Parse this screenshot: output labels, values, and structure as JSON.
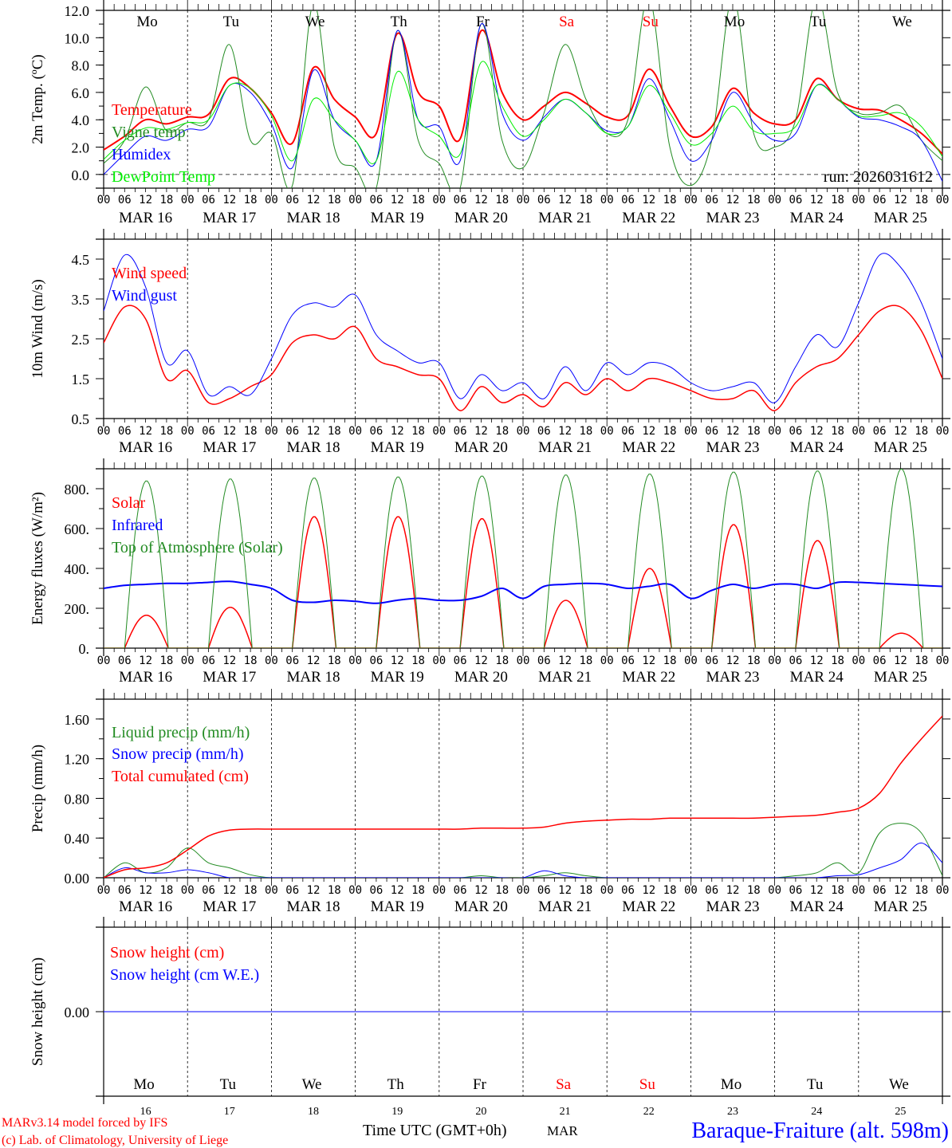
{
  "colors": {
    "red": "#ff0000",
    "green": "#228b22",
    "blue": "#0000ff",
    "lightgreen": "#00ee00",
    "black": "#000000"
  },
  "days": [
    "Mo",
    "Tu",
    "We",
    "Th",
    "Fr",
    "Sa",
    "Su",
    "Mo",
    "Tu",
    "We"
  ],
  "weekend_days": [
    5,
    6
  ],
  "dates": [
    "MAR  16",
    "MAR  17",
    "MAR  18",
    "MAR  19",
    "MAR  20",
    "MAR  21",
    "MAR  22",
    "MAR  23",
    "MAR  24",
    "MAR  25"
  ],
  "day_numbers": [
    "16",
    "17",
    "18",
    "19",
    "20",
    "21",
    "22",
    "23",
    "24",
    "25"
  ],
  "hour_ticks": [
    "00",
    "06",
    "12",
    "18"
  ],
  "final_tick": "00",
  "footer": {
    "model": "MARv3.14 model forced by IFS",
    "credit": "(c) Lab. of Climatology, University of Liege",
    "xlabel": "Time UTC (GMT+0h)",
    "month": "MAR",
    "station": "Baraque-Fraiture (alt. 598m)"
  },
  "chart_data": [
    {
      "type": "line",
      "ylabel": "2m Temp. (ºC)",
      "ylim": [
        -1,
        12
      ],
      "yticks": [
        "0.0",
        "2.0",
        "4.0",
        "6.0",
        "8.0",
        "10.0",
        "12.0"
      ],
      "ytick_values": [
        0,
        2,
        4,
        6,
        8,
        10,
        12
      ],
      "annotation": "run: 2026031612",
      "x_step_hours": 6,
      "series": [
        {
          "name": "Temperature",
          "color": "#ff0000",
          "width": 2,
          "values": [
            1.8,
            2.8,
            4.0,
            3.7,
            4.2,
            4.4,
            7.0,
            6.3,
            4.5,
            2.3,
            7.8,
            5.5,
            4.2,
            3.0,
            10.3,
            6.0,
            5.0,
            2.6,
            10.5,
            6.0,
            4.0,
            5.0,
            6.0,
            5.2,
            4.2,
            4.3,
            7.7,
            5.0,
            2.8,
            3.5,
            6.3,
            4.5,
            3.7,
            4.0,
            7.0,
            5.5,
            4.8,
            4.7,
            4.0,
            3.0,
            1.5
          ]
        },
        {
          "name": "Vigne temp",
          "color": "#228b22",
          "width": 1,
          "values": [
            0.8,
            2.5,
            6.4,
            3.2,
            3.8,
            4.0,
            9.5,
            2.5,
            3.0,
            -0.8,
            12.5,
            2.0,
            0.5,
            -1.0,
            10.5,
            2.5,
            0.8,
            -1.0,
            11.0,
            2.5,
            0.5,
            4.5,
            9.5,
            5.5,
            3.0,
            4.0,
            13.0,
            2.0,
            -0.8,
            2.5,
            13.0,
            3.0,
            2.0,
            4.0,
            13.0,
            6.0,
            4.5,
            4.5,
            5.0,
            2.5,
            1.0
          ]
        },
        {
          "name": "Humidex",
          "color": "#0000ff",
          "width": 1,
          "values": [
            0.0,
            1.5,
            2.8,
            2.5,
            3.3,
            3.5,
            6.5,
            6.0,
            3.7,
            0.5,
            7.6,
            4.0,
            2.5,
            1.0,
            10.5,
            4.0,
            3.5,
            1.0,
            11.0,
            4.5,
            2.5,
            4.2,
            5.5,
            4.5,
            3.2,
            3.5,
            7.0,
            4.0,
            1.0,
            2.5,
            6.0,
            3.8,
            2.5,
            3.0,
            6.5,
            5.5,
            4.2,
            4.0,
            3.5,
            2.5,
            -0.5
          ]
        },
        {
          "name": "DewPoint Temp",
          "color": "#00ee00",
          "width": 1,
          "values": [
            1.1,
            2.5,
            3.4,
            3.3,
            3.8,
            4.0,
            6.5,
            6.3,
            4.3,
            1.0,
            5.5,
            4.0,
            2.5,
            1.0,
            7.5,
            4.0,
            2.8,
            1.5,
            8.2,
            5.0,
            2.8,
            4.0,
            5.5,
            4.5,
            3.0,
            3.5,
            6.5,
            4.5,
            2.2,
            3.0,
            5.0,
            3.2,
            3.0,
            3.5,
            6.5,
            5.5,
            4.3,
            4.3,
            4.5,
            3.5,
            1.3
          ]
        }
      ]
    },
    {
      "type": "line",
      "ylabel": "10m Wind (m/s)",
      "ylim": [
        0.5,
        5.0
      ],
      "yticks": [
        "0.5",
        "1.5",
        "2.5",
        "3.5",
        "4.5"
      ],
      "ytick_values": [
        0.5,
        1.5,
        2.5,
        3.5,
        4.5
      ],
      "x_step_hours": 6,
      "series": [
        {
          "name": "Wind speed",
          "color": "#ff0000",
          "width": 1.5,
          "values": [
            2.4,
            3.3,
            3.0,
            1.5,
            1.7,
            0.9,
            1.0,
            1.3,
            1.6,
            2.4,
            2.6,
            2.5,
            2.8,
            2.0,
            1.8,
            1.6,
            1.5,
            0.7,
            1.3,
            0.9,
            1.1,
            0.8,
            1.4,
            1.1,
            1.5,
            1.2,
            1.5,
            1.4,
            1.2,
            1.0,
            1.0,
            1.2,
            0.7,
            1.4,
            1.8,
            2.0,
            2.6,
            3.2,
            3.3,
            2.7,
            1.5
          ]
        },
        {
          "name": "Wind gust",
          "color": "#0000ff",
          "width": 1,
          "values": [
            3.2,
            4.6,
            3.8,
            1.9,
            2.2,
            1.1,
            1.3,
            1.1,
            2.0,
            3.1,
            3.4,
            3.3,
            3.6,
            2.6,
            2.2,
            1.9,
            1.9,
            1.0,
            1.6,
            1.2,
            1.4,
            1.0,
            1.8,
            1.2,
            1.9,
            1.6,
            1.9,
            1.8,
            1.4,
            1.2,
            1.3,
            1.4,
            0.9,
            1.8,
            2.6,
            2.3,
            3.4,
            4.6,
            4.3,
            3.4,
            2.0
          ]
        }
      ]
    },
    {
      "type": "line",
      "ylabel": "Energy fluxes (W/m²)",
      "ylim": [
        0,
        900
      ],
      "yticks": [
        "0.",
        "200.",
        "400.",
        "600.",
        "800."
      ],
      "ytick_values": [
        0,
        200,
        400,
        600,
        800
      ],
      "series": [
        {
          "name": "Solar",
          "color": "#ff0000",
          "width": 1.5,
          "daily_peak": [
            165,
            205,
            660,
            660,
            650,
            240,
            400,
            620,
            540,
            75
          ]
        },
        {
          "name": "Infrared",
          "color": "#0000ff",
          "width": 2,
          "x_step_hours": 6,
          "values": [
            300,
            315,
            320,
            325,
            325,
            330,
            335,
            320,
            300,
            240,
            230,
            240,
            235,
            225,
            240,
            250,
            240,
            240,
            260,
            300,
            250,
            310,
            320,
            325,
            320,
            300,
            310,
            320,
            250,
            290,
            320,
            300,
            320,
            320,
            300,
            330,
            330,
            325,
            320,
            315,
            310
          ]
        },
        {
          "name": "Top of Atmosphere (Solar)",
          "color": "#228b22",
          "width": 1,
          "daily_peak": [
            840,
            850,
            855,
            860,
            865,
            870,
            875,
            885,
            890,
            900
          ]
        }
      ]
    },
    {
      "type": "line",
      "ylabel": "Precip (mm/h)",
      "ylim": [
        0,
        1.8
      ],
      "yticks": [
        "0.00",
        "0.40",
        "0.80",
        "1.20",
        "1.60"
      ],
      "ytick_values": [
        0,
        0.4,
        0.8,
        1.2,
        1.6
      ],
      "x_step_hours": 6,
      "series": [
        {
          "name": "Liquid precip (mm/h)",
          "color": "#228b22",
          "width": 1,
          "values": [
            0,
            0.15,
            0.05,
            0.1,
            0.3,
            0.15,
            0.1,
            0.03,
            0,
            0,
            0,
            0,
            0,
            0,
            0,
            0,
            0,
            0,
            0.02,
            0,
            0,
            0.02,
            0.05,
            0.02,
            0,
            0,
            0,
            0,
            0,
            0,
            0,
            0,
            0,
            0.02,
            0.05,
            0.15,
            0.05,
            0.45,
            0.55,
            0.45,
            0.02
          ]
        },
        {
          "name": "Snow precip (mm/h)",
          "color": "#0000ff",
          "width": 1,
          "values": [
            0,
            0.1,
            0.05,
            0.05,
            0.08,
            0.05,
            0,
            0,
            0,
            0,
            0,
            0,
            0,
            0,
            0,
            0,
            0,
            0,
            0,
            0,
            0,
            0.07,
            0.02,
            0,
            0,
            0,
            0,
            0,
            0,
            0,
            0,
            0,
            0,
            0,
            0,
            0.02,
            0.03,
            0.1,
            0.18,
            0.35,
            0.15
          ]
        },
        {
          "name": "Total cumulated (cm)",
          "color": "#ff0000",
          "width": 1.5,
          "values": [
            0,
            0.08,
            0.1,
            0.15,
            0.28,
            0.42,
            0.48,
            0.49,
            0.49,
            0.49,
            0.49,
            0.49,
            0.49,
            0.49,
            0.49,
            0.49,
            0.49,
            0.49,
            0.5,
            0.5,
            0.5,
            0.51,
            0.55,
            0.57,
            0.58,
            0.59,
            0.59,
            0.6,
            0.6,
            0.6,
            0.6,
            0.6,
            0.61,
            0.62,
            0.63,
            0.66,
            0.7,
            0.85,
            1.15,
            1.4,
            1.63
          ]
        }
      ]
    },
    {
      "type": "line",
      "ylabel": "Snow height (cm)",
      "ylim": [
        -1,
        1
      ],
      "yticks": [
        "0.00"
      ],
      "ytick_values": [
        0
      ],
      "x_step_hours": 6,
      "series": [
        {
          "name": "Snow height (cm)",
          "color": "#ff0000",
          "width": 1,
          "values": [
            0,
            0,
            0,
            0,
            0,
            0,
            0,
            0,
            0,
            0,
            0,
            0,
            0,
            0,
            0,
            0,
            0,
            0,
            0,
            0,
            0,
            0,
            0,
            0,
            0,
            0,
            0,
            0,
            0,
            0,
            0,
            0,
            0,
            0,
            0,
            0,
            0,
            0,
            0,
            0,
            0
          ]
        },
        {
          "name": "Snow height (cm W.E.)",
          "color": "#0000ff",
          "width": 1,
          "values": [
            0,
            0,
            0,
            0,
            0,
            0,
            0,
            0,
            0,
            0,
            0,
            0,
            0,
            0,
            0,
            0,
            0,
            0,
            0,
            0,
            0,
            0,
            0,
            0,
            0,
            0,
            0,
            0,
            0,
            0,
            0,
            0,
            0,
            0,
            0,
            0,
            0,
            0,
            0,
            0,
            0
          ]
        }
      ]
    }
  ]
}
